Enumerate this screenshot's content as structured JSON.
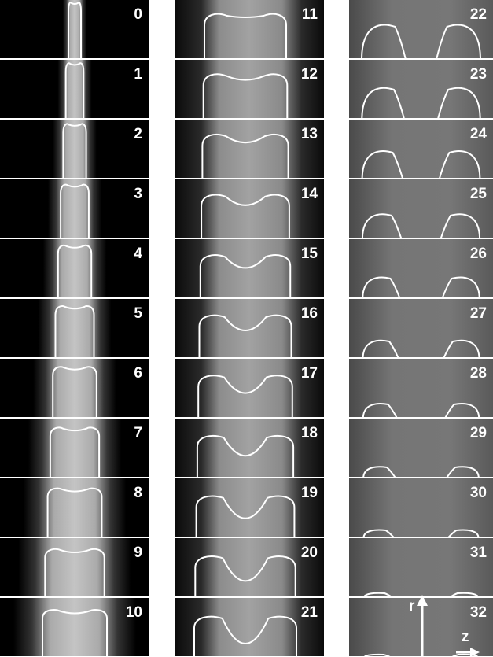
{
  "frames": [
    0,
    1,
    2,
    3,
    4,
    5,
    6,
    7,
    8,
    9,
    10,
    11,
    12,
    13,
    14,
    15,
    16,
    17,
    18,
    19,
    20,
    21,
    22,
    23,
    24,
    25,
    26,
    27,
    28,
    29,
    30,
    31,
    32
  ],
  "axis_labels": {
    "r": "r",
    "z": "z"
  }
}
